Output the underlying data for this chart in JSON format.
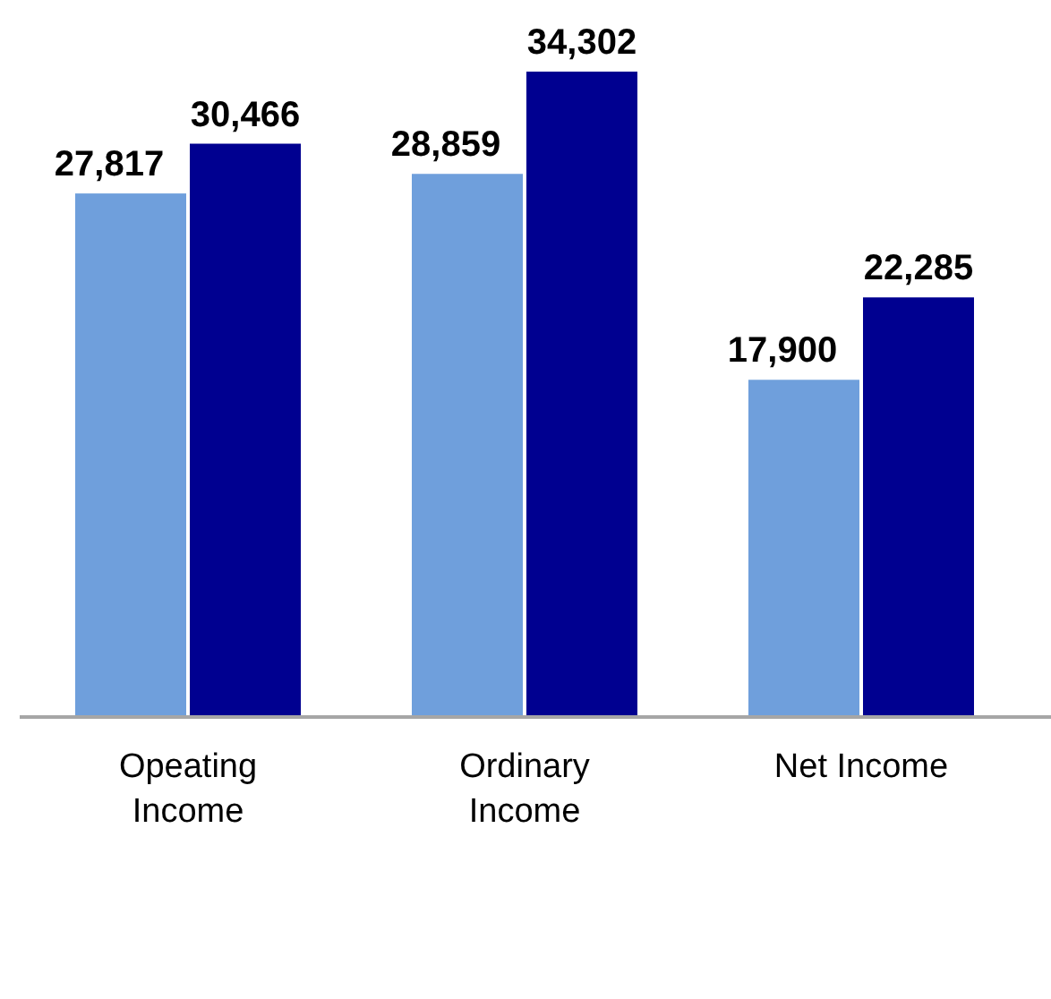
{
  "chart_data": {
    "type": "bar",
    "categories": [
      "Opeating Income",
      "Ordinary Income",
      "Net Income"
    ],
    "series": [
      {
        "color": "#6f9fdc",
        "values": [
          27817,
          28859,
          17900
        ],
        "value_labels": [
          "27,817",
          "28,859",
          "17,900"
        ]
      },
      {
        "color": "#000090",
        "values": [
          30466,
          34302,
          22285
        ],
        "value_labels": [
          "30,466",
          "34,302",
          "22,285"
        ]
      }
    ]
  }
}
